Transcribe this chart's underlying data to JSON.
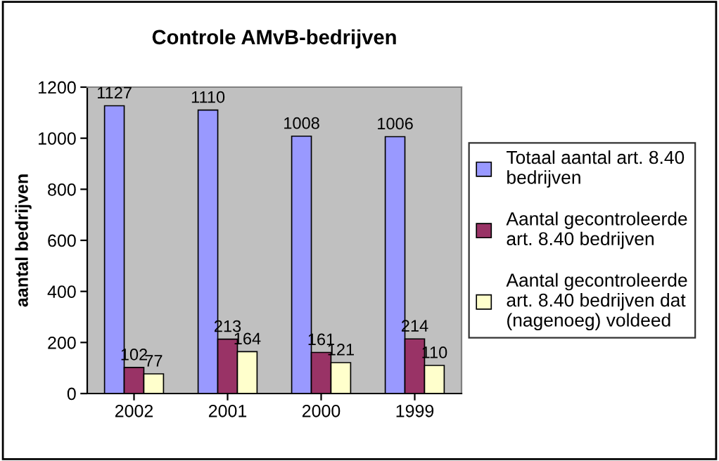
{
  "chart_data": {
    "type": "bar",
    "title": "Controle AMvB-bedrijven",
    "ylabel": "aantal bedrijven",
    "categories": [
      "2002",
      "2001",
      "2000",
      "1999"
    ],
    "series": [
      {
        "name": "Totaal aantal art. 8.40\nbedrijven",
        "color": "#9999ff",
        "values": [
          1127,
          1110,
          1008,
          1006
        ]
      },
      {
        "name": "Aantal gecontroleerde\nart. 8.40 bedrijven",
        "color": "#993366",
        "values": [
          102,
          213,
          161,
          214
        ]
      },
      {
        "name": "Aantal gecontroleerde\nart. 8.40 bedrijven dat\n(nagenoeg) voldeed",
        "color": "#ffffcc",
        "values": [
          77,
          164,
          121,
          110
        ]
      }
    ],
    "ylim": [
      0,
      1200
    ],
    "yticks": [
      0,
      200,
      400,
      600,
      800,
      1000,
      1200
    ],
    "data_labels": true,
    "grid": false,
    "legend": "right"
  }
}
